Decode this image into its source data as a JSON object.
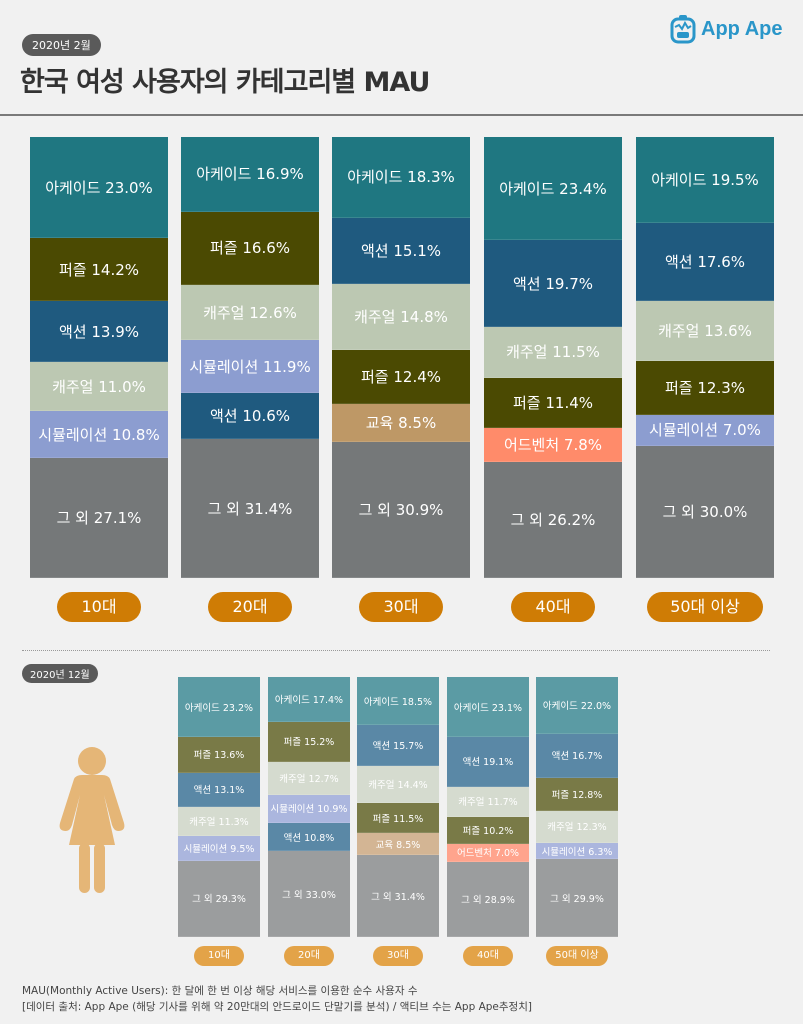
{
  "header": {
    "date_badge": "2020년 2월",
    "title": "한국 여성 사용자의 카테고리별 MAU",
    "logo_text": "App Ape",
    "logo_icon": "app-ape-monkey-icon"
  },
  "colors": {
    "아케이드": "#1f7781",
    "퍼즐": "#4b4a02",
    "액션": "#1f5a7f",
    "캐주얼": "#bcc8b2",
    "시뮬레이션": "#8c9dd0",
    "교육": "#be9866",
    "어드벤처": "#ff8b6a",
    "그 외": "#757879",
    "age_pill": "#cf7c05",
    "age_pill_small": "#e3a348",
    "woman_icon": "#e5b677"
  },
  "colors_light": {
    "아케이드": "#5b9ba4",
    "퍼즐": "#797a47",
    "액션": "#5a88a6",
    "캐주얼": "#d5dbcf",
    "시뮬레이션": "#abb6de",
    "교육": "#d3b594",
    "어드벤처": "#ffa48d",
    "그 외": "#9b9d9e"
  },
  "chart_data": [
    {
      "type": "bar",
      "stacked": true,
      "title": "한국 여성 사용자의 카테고리별 MAU (2020년 2월)",
      "unit": "%",
      "categories": [
        "10대",
        "20대",
        "30대",
        "40대",
        "50대 이상"
      ],
      "bars": [
        {
          "age": "10대",
          "segments": [
            {
              "name": "아케이드",
              "value": 23.0,
              "label": "아케이드 23.0%"
            },
            {
              "name": "퍼즐",
              "value": 14.2,
              "label": "퍼즐 14.2%"
            },
            {
              "name": "액션",
              "value": 13.9,
              "label": "액션 13.9%"
            },
            {
              "name": "캐주얼",
              "value": 11.0,
              "label": "캐주얼 11.0%"
            },
            {
              "name": "시뮬레이션",
              "value": 10.8,
              "label": "시뮬레이션 10.8%"
            },
            {
              "name": "그 외",
              "value": 27.1,
              "label": "그 외 27.1%"
            }
          ]
        },
        {
          "age": "20대",
          "segments": [
            {
              "name": "아케이드",
              "value": 16.9,
              "label": "아케이드 16.9%"
            },
            {
              "name": "퍼즐",
              "value": 16.6,
              "label": "퍼즐 16.6%"
            },
            {
              "name": "캐주얼",
              "value": 12.6,
              "label": "캐주얼 12.6%"
            },
            {
              "name": "시뮬레이션",
              "value": 11.9,
              "label": "시뮬레이션 11.9%"
            },
            {
              "name": "액션",
              "value": 10.6,
              "label": "액션 10.6%"
            },
            {
              "name": "그 외",
              "value": 31.4,
              "label": "그 외 31.4%"
            }
          ]
        },
        {
          "age": "30대",
          "segments": [
            {
              "name": "아케이드",
              "value": 18.3,
              "label": "아케이드 18.3%"
            },
            {
              "name": "액션",
              "value": 15.1,
              "label": "액션 15.1%"
            },
            {
              "name": "캐주얼",
              "value": 14.8,
              "label": "캐주얼 14.8%"
            },
            {
              "name": "퍼즐",
              "value": 12.4,
              "label": "퍼즐 12.4%"
            },
            {
              "name": "교육",
              "value": 8.5,
              "label": "교육 8.5%"
            },
            {
              "name": "그 외",
              "value": 30.9,
              "label": "그 외 30.9%"
            }
          ]
        },
        {
          "age": "40대",
          "segments": [
            {
              "name": "아케이드",
              "value": 23.4,
              "label": "아케이드 23.4%"
            },
            {
              "name": "액션",
              "value": 19.7,
              "label": "액션 19.7%"
            },
            {
              "name": "캐주얼",
              "value": 11.5,
              "label": "캐주얼 11.5%"
            },
            {
              "name": "퍼즐",
              "value": 11.4,
              "label": "퍼즐 11.4%"
            },
            {
              "name": "어드벤처",
              "value": 7.8,
              "label": "어드벤처 7.8%"
            },
            {
              "name": "그 외",
              "value": 26.2,
              "label": "그 외 26.2%"
            }
          ]
        },
        {
          "age": "50대 이상",
          "segments": [
            {
              "name": "아케이드",
              "value": 19.5,
              "label": "아케이드 19.5%"
            },
            {
              "name": "액션",
              "value": 17.6,
              "label": "액션 17.6%"
            },
            {
              "name": "캐주얼",
              "value": 13.6,
              "label": "캐주얼 13.6%"
            },
            {
              "name": "퍼즐",
              "value": 12.3,
              "label": "퍼즐 12.3%"
            },
            {
              "name": "시뮬레이션",
              "value": 7.0,
              "label": "시뮬레이션 7.0%"
            },
            {
              "name": "그 외",
              "value": 30.0,
              "label": "그 외 30.0%"
            }
          ]
        }
      ]
    },
    {
      "type": "bar",
      "stacked": true,
      "title": "2020년 12월",
      "unit": "%",
      "categories": [
        "10대",
        "20대",
        "30대",
        "40대",
        "50대 이상"
      ],
      "bars": [
        {
          "age": "10대",
          "segments": [
            {
              "name": "아케이드",
              "value": 23.2,
              "label": "아케이드 23.2%"
            },
            {
              "name": "퍼즐",
              "value": 13.6,
              "label": "퍼즐 13.6%"
            },
            {
              "name": "액션",
              "value": 13.1,
              "label": "액션 13.1%"
            },
            {
              "name": "캐주얼",
              "value": 11.3,
              "label": "캐주얼 11.3%"
            },
            {
              "name": "시뮬레이션",
              "value": 9.5,
              "label": "시뮬레이션 9.5%"
            },
            {
              "name": "그 외",
              "value": 29.3,
              "label": "그 외 29.3%"
            }
          ]
        },
        {
          "age": "20대",
          "segments": [
            {
              "name": "아케이드",
              "value": 17.4,
              "label": "아케이드 17.4%"
            },
            {
              "name": "퍼즐",
              "value": 15.2,
              "label": "퍼즐 15.2%"
            },
            {
              "name": "캐주얼",
              "value": 12.7,
              "label": "캐주얼 12.7%"
            },
            {
              "name": "시뮬레이션",
              "value": 10.9,
              "label": "시뮬레이션 10.9%"
            },
            {
              "name": "액션",
              "value": 10.8,
              "label": "액션 10.8%"
            },
            {
              "name": "그 외",
              "value": 33.0,
              "label": "그 외 33.0%"
            }
          ]
        },
        {
          "age": "30대",
          "segments": [
            {
              "name": "아케이드",
              "value": 18.5,
              "label": "아케이드 18.5%"
            },
            {
              "name": "액션",
              "value": 15.7,
              "label": "액션 15.7%"
            },
            {
              "name": "캐주얼",
              "value": 14.4,
              "label": "캐주얼 14.4%"
            },
            {
              "name": "퍼즐",
              "value": 11.5,
              "label": "퍼즐 11.5%"
            },
            {
              "name": "교육",
              "value": 8.5,
              "label": "교육 8.5%"
            },
            {
              "name": "그 외",
              "value": 31.4,
              "label": "그 외 31.4%"
            }
          ]
        },
        {
          "age": "40대",
          "segments": [
            {
              "name": "아케이드",
              "value": 23.1,
              "label": "아케이드 23.1%"
            },
            {
              "name": "액션",
              "value": 19.1,
              "label": "액션 19.1%"
            },
            {
              "name": "캐주얼",
              "value": 11.7,
              "label": "캐주얼 11.7%"
            },
            {
              "name": "퍼즐",
              "value": 10.2,
              "label": "퍼즐 10.2%"
            },
            {
              "name": "어드벤처",
              "value": 7.0,
              "label": "어드벤처 7.0%"
            },
            {
              "name": "그 외",
              "value": 28.9,
              "label": "그 외 28.9%"
            }
          ]
        },
        {
          "age": "50대 이상",
          "segments": [
            {
              "name": "아케이드",
              "value": 22.0,
              "label": "아케이드 22.0%"
            },
            {
              "name": "액션",
              "value": 16.7,
              "label": "액션 16.7%"
            },
            {
              "name": "퍼즐",
              "value": 12.8,
              "label": "퍼즐 12.8%"
            },
            {
              "name": "캐주얼",
              "value": 12.3,
              "label": "캐주얼 12.3%"
            },
            {
              "name": "시뮬레이션",
              "value": 6.3,
              "label": "시뮬레이션 6.3%"
            },
            {
              "name": "그 외",
              "value": 29.9,
              "label": "그 외 29.9%"
            }
          ]
        }
      ]
    }
  ],
  "secondary": {
    "date_badge": "2020년 12월",
    "icon": "woman-icon"
  },
  "footer": {
    "line1": "MAU(Monthly Active Users):  한 달에 한 번 이상 해당 서비스를 이용한 순수 사용자 수",
    "line2": "[데이터 출처: App Ape (해당 기사를 위해 약 20만대의 안드로이드 단말기를 분석) / 액티브 수는 App Ape추정치]"
  }
}
